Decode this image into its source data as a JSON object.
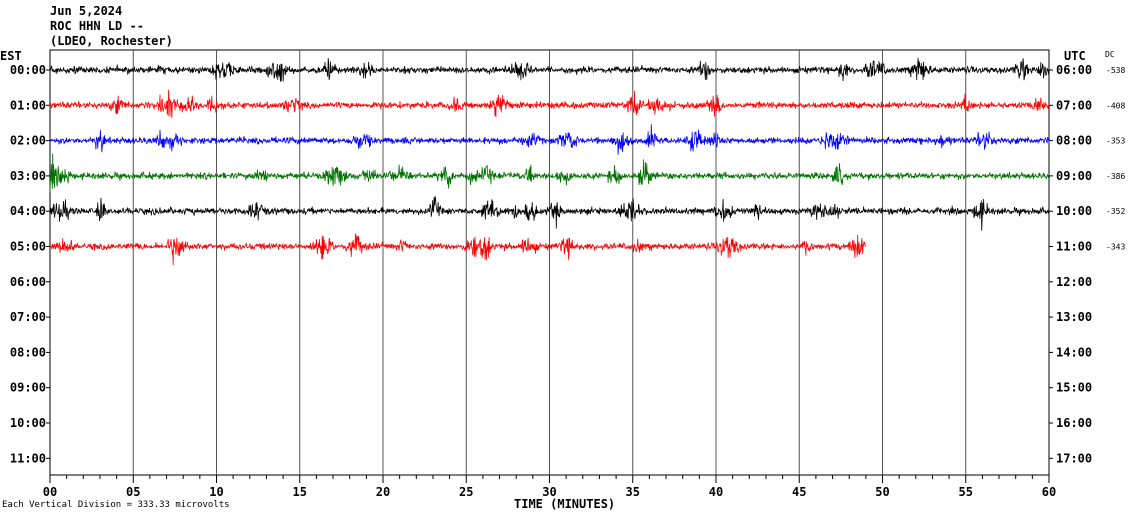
{
  "header": {
    "date": "Jun 5,2024",
    "station": "ROC HHN LD --",
    "network": "(LDEO, Rochester)"
  },
  "axis_labels": {
    "left_tz": "EST",
    "right_tz": "UTC",
    "dc": "DC",
    "x": "TIME (MINUTES)"
  },
  "footer": {
    "scale_note": "Each Vertical Division =  333.33 microvolts"
  },
  "colors": {
    "trace_cycle": [
      "#000000",
      "#ff0000",
      "#0000ff",
      "#007000"
    ],
    "grid": "#000000",
    "background": "#ffffff"
  },
  "chart_data": {
    "type": "line",
    "title": "Jun 5,2024",
    "xlabel": "TIME (MINUTES)",
    "ylabel": "",
    "x_ticks": [
      "00",
      "05",
      "10",
      "15",
      "20",
      "25",
      "30",
      "35",
      "40",
      "45",
      "50",
      "55",
      "60"
    ],
    "xlim": [
      0,
      60
    ],
    "grid": true,
    "rows": [
      {
        "est": "00:00",
        "utc": "06:00",
        "dc": "-538",
        "color": "#000000",
        "minutes": 60
      },
      {
        "est": "01:00",
        "utc": "07:00",
        "dc": "-408",
        "color": "#ff0000",
        "minutes": 60
      },
      {
        "est": "02:00",
        "utc": "08:00",
        "dc": "-353",
        "color": "#0000ff",
        "minutes": 60
      },
      {
        "est": "03:00",
        "utc": "09:00",
        "dc": "-386",
        "color": "#007000",
        "minutes": 60
      },
      {
        "est": "04:00",
        "utc": "10:00",
        "dc": "-352",
        "color": "#000000",
        "minutes": 60
      },
      {
        "est": "05:00",
        "utc": "11:00",
        "dc": "-343",
        "color": "#ff0000",
        "minutes": 49
      },
      {
        "est": "06:00",
        "utc": "12:00",
        "dc": "",
        "color": "#0000ff",
        "minutes": 0
      },
      {
        "est": "07:00",
        "utc": "13:00",
        "dc": "",
        "color": "#007000",
        "minutes": 0
      },
      {
        "est": "08:00",
        "utc": "14:00",
        "dc": "",
        "color": "#000000",
        "minutes": 0
      },
      {
        "est": "09:00",
        "utc": "15:00",
        "dc": "",
        "color": "#ff0000",
        "minutes": 0
      },
      {
        "est": "10:00",
        "utc": "16:00",
        "dc": "",
        "color": "#0000ff",
        "minutes": 0
      },
      {
        "est": "11:00",
        "utc": "17:00",
        "dc": "",
        "color": "#007000",
        "minutes": 0
      }
    ]
  }
}
